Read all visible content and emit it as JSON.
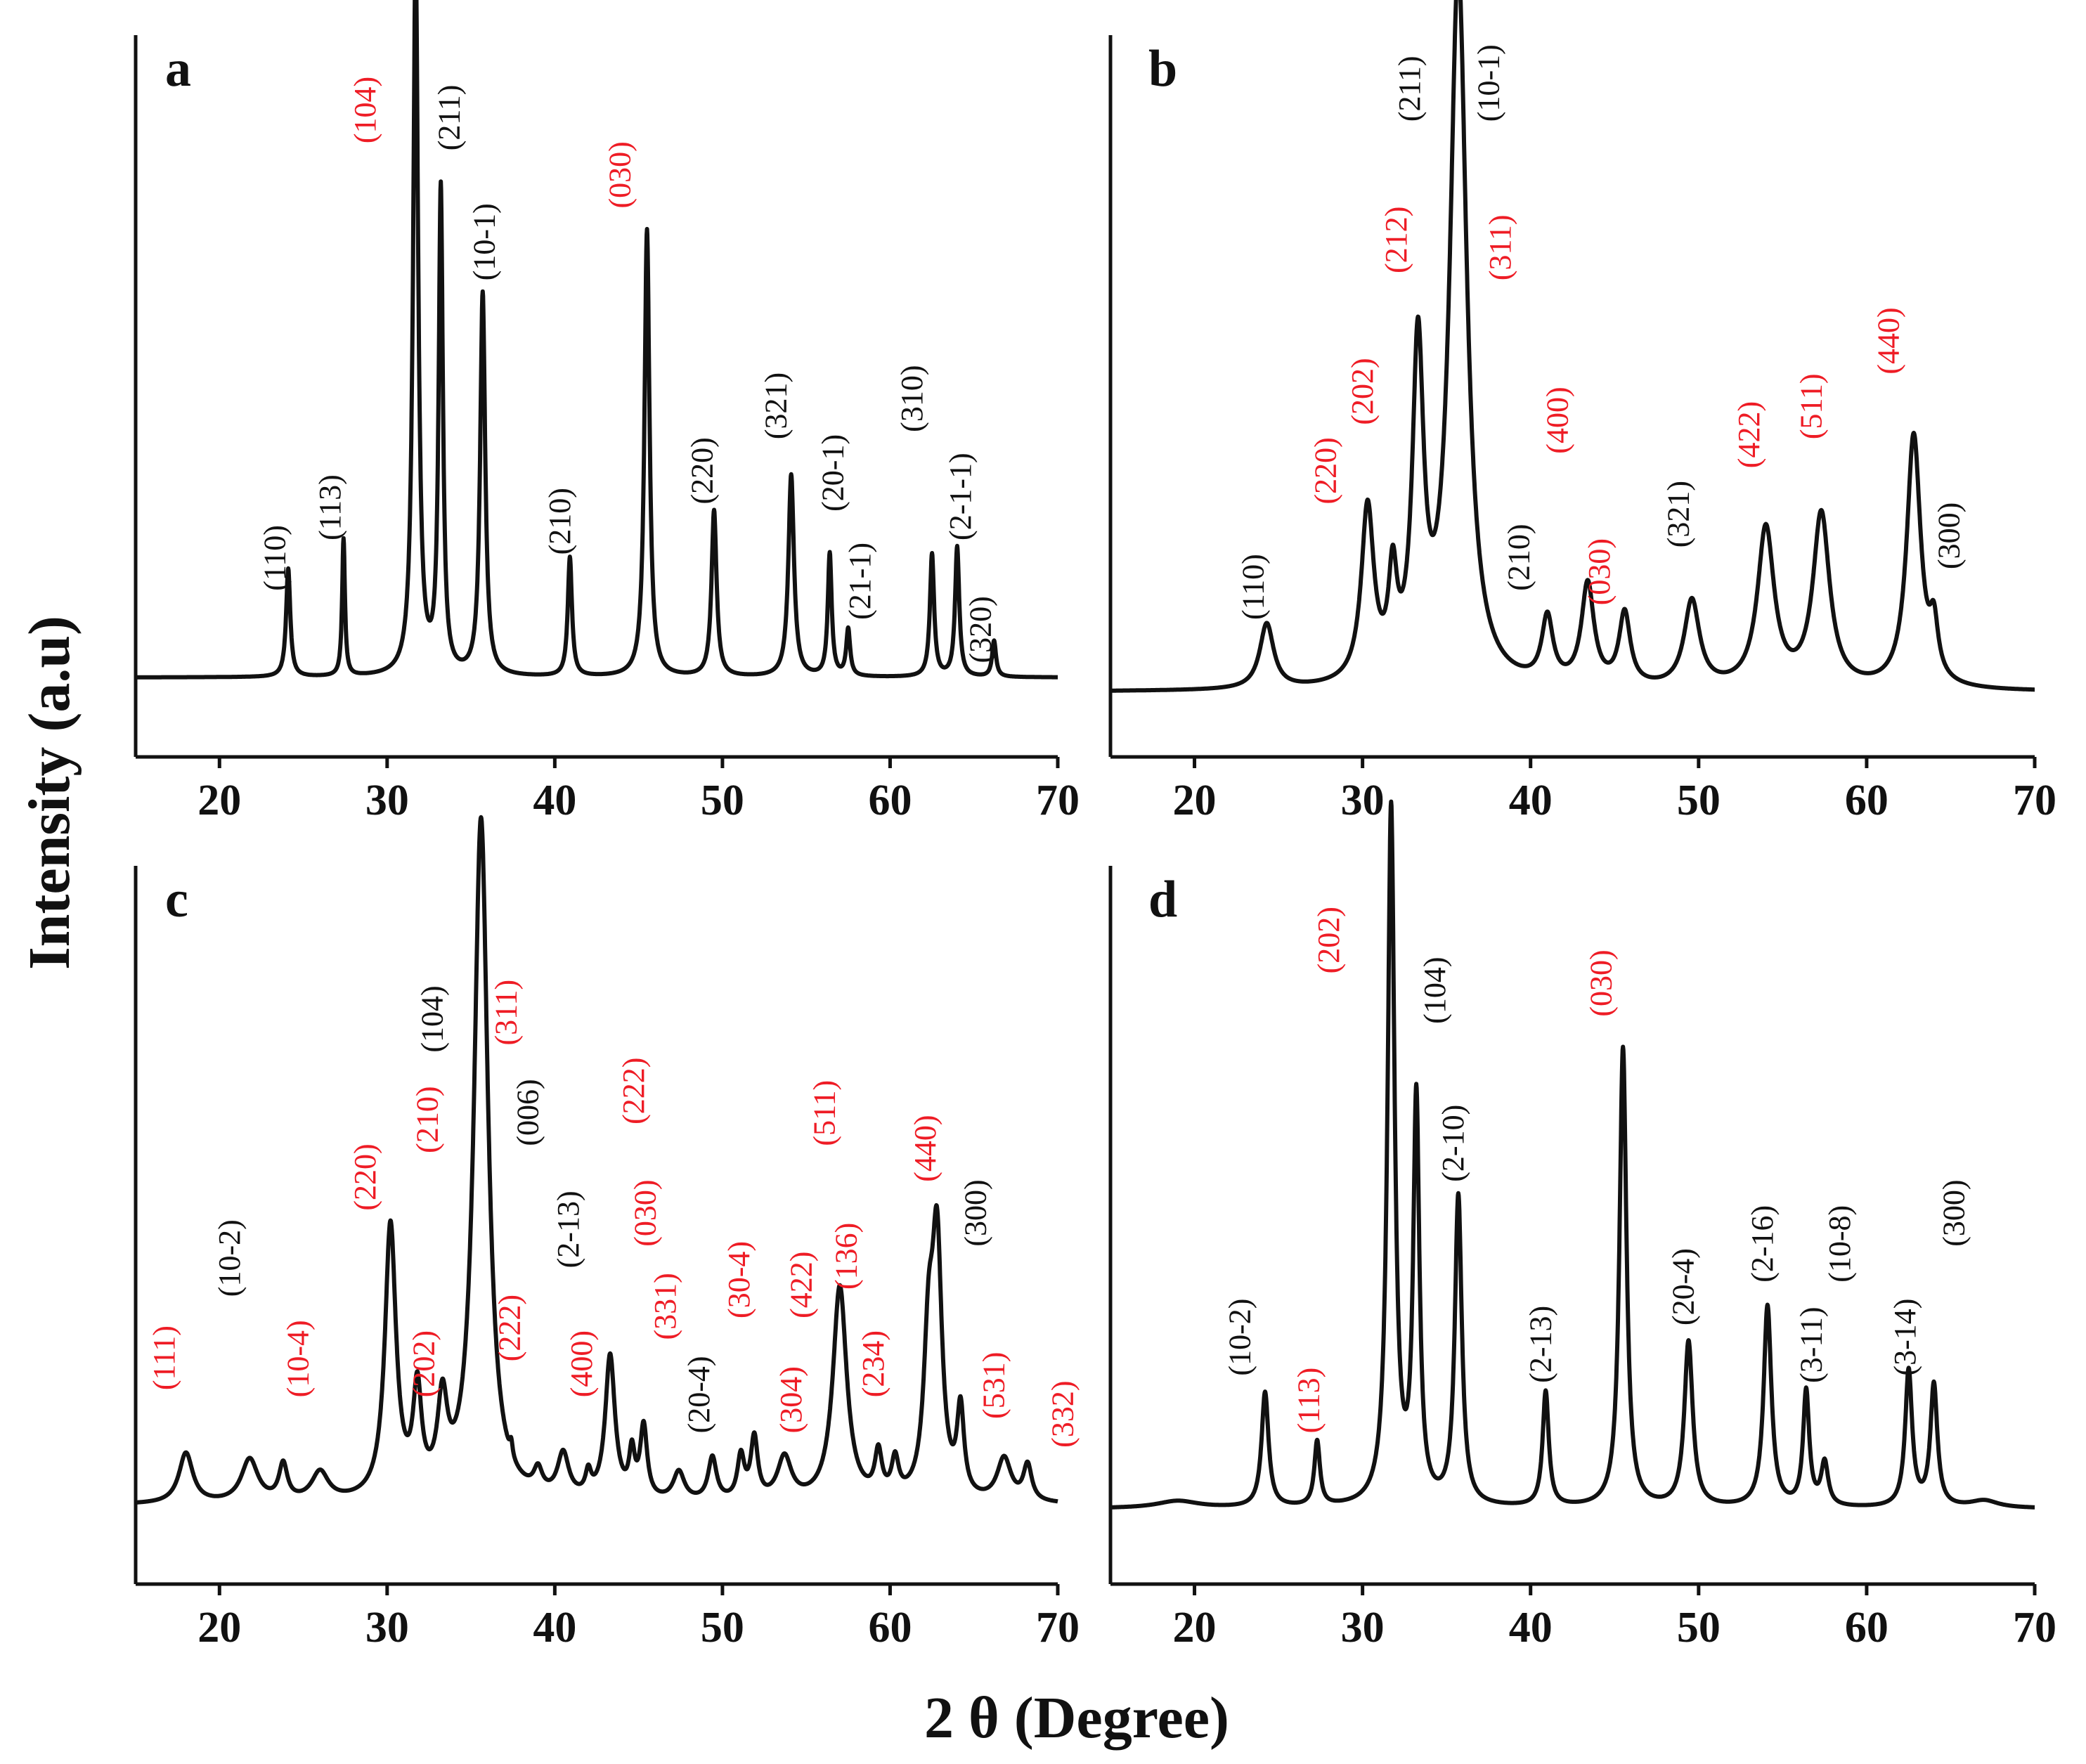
{
  "figure": {
    "ylabel": "Intensity (a.u)",
    "xlabel": "2 θ (Degree)",
    "colors": {
      "red": "#ee1c25",
      "black": "#111111"
    }
  },
  "chart_data": [
    {
      "type": "line",
      "panel": "a",
      "xlim": [
        15,
        70
      ],
      "xticks": [
        20,
        30,
        40,
        50,
        60,
        70
      ],
      "xtick_labels": [
        "20",
        "30",
        "40",
        "50",
        "60",
        "70"
      ],
      "baseline": 0.11,
      "peaks": [
        {
          "x": 24.1,
          "h": 0.15,
          "w": 0.15
        },
        {
          "x": 27.4,
          "h": 0.19,
          "w": 0.1
        },
        {
          "x": 31.7,
          "h": 1.0,
          "w": 0.18
        },
        {
          "x": 33.2,
          "h": 0.67,
          "w": 0.15
        },
        {
          "x": 35.7,
          "h": 0.53,
          "w": 0.18
        },
        {
          "x": 40.9,
          "h": 0.165,
          "w": 0.15
        },
        {
          "x": 45.5,
          "h": 0.62,
          "w": 0.18
        },
        {
          "x": 49.5,
          "h": 0.23,
          "w": 0.18
        },
        {
          "x": 54.1,
          "h": 0.28,
          "w": 0.2
        },
        {
          "x": 56.4,
          "h": 0.17,
          "w": 0.14
        },
        {
          "x": 57.5,
          "h": 0.065,
          "w": 0.14
        },
        {
          "x": 62.5,
          "h": 0.17,
          "w": 0.15
        },
        {
          "x": 64.0,
          "h": 0.18,
          "w": 0.15
        },
        {
          "x": 66.2,
          "h": 0.05,
          "w": 0.14
        }
      ],
      "annotations": [
        {
          "text": "(110)",
          "x": 23.9,
          "y": 0.23,
          "color": "black"
        },
        {
          "text": "(113)",
          "x": 27.2,
          "y": 0.3,
          "color": "black"
        },
        {
          "text": "(104)",
          "x": 29.3,
          "y": 0.85,
          "color": "red"
        },
        {
          "text": "(211)",
          "x": 34.3,
          "y": 0.84,
          "color": "black"
        },
        {
          "text": "(10-1)",
          "x": 36.4,
          "y": 0.66,
          "color": "black"
        },
        {
          "text": "(210)",
          "x": 40.9,
          "y": 0.28,
          "color": "black"
        },
        {
          "text": "(030)",
          "x": 44.5,
          "y": 0.76,
          "color": "red"
        },
        {
          "text": "(220)",
          "x": 49.4,
          "y": 0.35,
          "color": "black"
        },
        {
          "text": "(321)",
          "x": 53.8,
          "y": 0.44,
          "color": "black"
        },
        {
          "text": "(20-1)",
          "x": 57.2,
          "y": 0.34,
          "color": "black"
        },
        {
          "text": "(21-1)",
          "x": 58.8,
          "y": 0.19,
          "color": "black"
        },
        {
          "text": "(310)",
          "x": 61.9,
          "y": 0.45,
          "color": "black"
        },
        {
          "text": "(2-1-1)",
          "x": 64.8,
          "y": 0.3,
          "color": "black"
        },
        {
          "text": "(320)",
          "x": 66.0,
          "y": 0.13,
          "color": "black"
        }
      ]
    },
    {
      "type": "line",
      "panel": "b",
      "xlim": [
        15,
        70
      ],
      "xticks": [
        20,
        30,
        40,
        50,
        60,
        70
      ],
      "xtick_labels": [
        "20",
        "30",
        "40",
        "50",
        "60",
        "70"
      ],
      "baseline": 0.09,
      "peaks": [
        {
          "x": 24.3,
          "h": 0.09,
          "w": 0.5
        },
        {
          "x": 30.3,
          "h": 0.24,
          "w": 0.45
        },
        {
          "x": 31.8,
          "h": 0.13,
          "w": 0.3
        },
        {
          "x": 33.3,
          "h": 0.45,
          "w": 0.4
        },
        {
          "x": 35.7,
          "h": 0.99,
          "w": 0.6
        },
        {
          "x": 41.0,
          "h": 0.09,
          "w": 0.4
        },
        {
          "x": 43.4,
          "h": 0.14,
          "w": 0.45
        },
        {
          "x": 45.6,
          "h": 0.1,
          "w": 0.4
        },
        {
          "x": 49.6,
          "h": 0.12,
          "w": 0.55
        },
        {
          "x": 54.0,
          "h": 0.22,
          "w": 0.6
        },
        {
          "x": 57.3,
          "h": 0.24,
          "w": 0.6
        },
        {
          "x": 62.8,
          "h": 0.35,
          "w": 0.5
        },
        {
          "x": 64.0,
          "h": 0.07,
          "w": 0.3
        }
      ],
      "annotations": [
        {
          "text": "(110)",
          "x": 24.1,
          "y": 0.19,
          "color": "black"
        },
        {
          "text": "(220)",
          "x": 28.4,
          "y": 0.35,
          "color": "red"
        },
        {
          "text": "(202)",
          "x": 30.6,
          "y": 0.46,
          "color": "red"
        },
        {
          "text": "(212)",
          "x": 32.6,
          "y": 0.67,
          "color": "red"
        },
        {
          "text": "(211)",
          "x": 33.4,
          "y": 0.88,
          "color": "black"
        },
        {
          "text": "(10-1)",
          "x": 38.1,
          "y": 0.88,
          "color": "black"
        },
        {
          "text": "(311)",
          "x": 38.8,
          "y": 0.66,
          "color": "red"
        },
        {
          "text": "(210)",
          "x": 39.9,
          "y": 0.23,
          "color": "black"
        },
        {
          "text": "(400)",
          "x": 42.2,
          "y": 0.42,
          "color": "red"
        },
        {
          "text": "(030)",
          "x": 44.7,
          "y": 0.21,
          "color": "red"
        },
        {
          "text": "(321)",
          "x": 49.4,
          "y": 0.29,
          "color": "black"
        },
        {
          "text": "(422)",
          "x": 53.6,
          "y": 0.4,
          "color": "red"
        },
        {
          "text": "(511)",
          "x": 57.3,
          "y": 0.44,
          "color": "red"
        },
        {
          "text": "(440)",
          "x": 61.9,
          "y": 0.53,
          "color": "red"
        },
        {
          "text": "(300)",
          "x": 65.5,
          "y": 0.26,
          "color": "black"
        }
      ]
    },
    {
      "type": "line",
      "panel": "c",
      "xlim": [
        15,
        70
      ],
      "xticks": [
        20,
        30,
        40,
        50,
        60,
        70
      ],
      "xtick_labels": [
        "20",
        "30",
        "40",
        "50",
        "60",
        "70"
      ],
      "baseline": 0.11,
      "peaks": [
        {
          "x": 18.0,
          "h": 0.07,
          "w": 0.5
        },
        {
          "x": 21.8,
          "h": 0.06,
          "w": 0.6
        },
        {
          "x": 23.8,
          "h": 0.05,
          "w": 0.3
        },
        {
          "x": 26.0,
          "h": 0.04,
          "w": 0.6
        },
        {
          "x": 30.2,
          "h": 0.38,
          "w": 0.4
        },
        {
          "x": 31.8,
          "h": 0.14,
          "w": 0.3
        },
        {
          "x": 33.3,
          "h": 0.12,
          "w": 0.35
        },
        {
          "x": 35.6,
          "h": 0.95,
          "w": 0.5
        },
        {
          "x": 37.4,
          "h": 0.02,
          "w": 0.1
        },
        {
          "x": 39.0,
          "h": 0.03,
          "w": 0.3
        },
        {
          "x": 40.5,
          "h": 0.06,
          "w": 0.4
        },
        {
          "x": 42.0,
          "h": 0.03,
          "w": 0.2
        },
        {
          "x": 43.3,
          "h": 0.2,
          "w": 0.35
        },
        {
          "x": 44.6,
          "h": 0.06,
          "w": 0.2
        },
        {
          "x": 45.3,
          "h": 0.1,
          "w": 0.25
        },
        {
          "x": 47.4,
          "h": 0.04,
          "w": 0.4
        },
        {
          "x": 49.4,
          "h": 0.06,
          "w": 0.3
        },
        {
          "x": 51.1,
          "h": 0.06,
          "w": 0.25
        },
        {
          "x": 51.9,
          "h": 0.085,
          "w": 0.25
        },
        {
          "x": 53.7,
          "h": 0.06,
          "w": 0.5
        },
        {
          "x": 57.0,
          "h": 0.3,
          "w": 0.5
        },
        {
          "x": 59.3,
          "h": 0.06,
          "w": 0.25
        },
        {
          "x": 60.3,
          "h": 0.05,
          "w": 0.25
        },
        {
          "x": 62.3,
          "h": 0.2,
          "w": 0.35
        },
        {
          "x": 62.8,
          "h": 0.34,
          "w": 0.35
        },
        {
          "x": 64.2,
          "h": 0.12,
          "w": 0.25
        },
        {
          "x": 66.8,
          "h": 0.06,
          "w": 0.5
        },
        {
          "x": 68.2,
          "h": 0.05,
          "w": 0.3
        }
      ],
      "annotations": [
        {
          "text": "(111)",
          "x": 17.3,
          "y": 0.27,
          "color": "red"
        },
        {
          "text": "(10-2)",
          "x": 21.2,
          "y": 0.4,
          "color": "black"
        },
        {
          "text": "(10-4)",
          "x": 25.3,
          "y": 0.26,
          "color": "red"
        },
        {
          "text": "(220)",
          "x": 29.3,
          "y": 0.52,
          "color": "red"
        },
        {
          "text": "(202)",
          "x": 32.8,
          "y": 0.26,
          "color": "red"
        },
        {
          "text": "(210)",
          "x": 33.0,
          "y": 0.6,
          "color": "red"
        },
        {
          "text": "(104)",
          "x": 33.3,
          "y": 0.74,
          "color": "black"
        },
        {
          "text": "(311)",
          "x": 37.7,
          "y": 0.75,
          "color": "red"
        },
        {
          "text": "(222)",
          "x": 37.9,
          "y": 0.31,
          "color": "red"
        },
        {
          "text": "(006)",
          "x": 39.0,
          "y": 0.61,
          "color": "black"
        },
        {
          "text": "(2-13)",
          "x": 41.4,
          "y": 0.44,
          "color": "black"
        },
        {
          "text": "(400)",
          "x": 42.2,
          "y": 0.26,
          "color": "red"
        },
        {
          "text": "(222)",
          "x": 45.3,
          "y": 0.64,
          "color": "red"
        },
        {
          "text": "(030)",
          "x": 46.0,
          "y": 0.47,
          "color": "red"
        },
        {
          "text": "(331)",
          "x": 47.2,
          "y": 0.34,
          "color": "red"
        },
        {
          "text": "(20-4)",
          "x": 49.2,
          "y": 0.21,
          "color": "black"
        },
        {
          "text": "(30-4)",
          "x": 51.6,
          "y": 0.37,
          "color": "red"
        },
        {
          "text": "(304)",
          "x": 54.7,
          "y": 0.21,
          "color": "red"
        },
        {
          "text": "(422)",
          "x": 55.3,
          "y": 0.37,
          "color": "red"
        },
        {
          "text": "(511)",
          "x": 56.7,
          "y": 0.61,
          "color": "red"
        },
        {
          "text": "(136)",
          "x": 58.0,
          "y": 0.41,
          "color": "red"
        },
        {
          "text": "(234)",
          "x": 59.6,
          "y": 0.26,
          "color": "red"
        },
        {
          "text": "(440)",
          "x": 62.7,
          "y": 0.56,
          "color": "red"
        },
        {
          "text": "(300)",
          "x": 65.7,
          "y": 0.47,
          "color": "black"
        },
        {
          "text": "(531)",
          "x": 66.8,
          "y": 0.23,
          "color": "red"
        },
        {
          "text": "(332)",
          "x": 70.9,
          "y": 0.19,
          "color": "red"
        }
      ]
    },
    {
      "type": "line",
      "panel": "d",
      "xlim": [
        15,
        70
      ],
      "xticks": [
        20,
        30,
        40,
        50,
        60,
        70
      ],
      "xtick_labels": [
        "20",
        "30",
        "40",
        "50",
        "60",
        "70"
      ],
      "baseline": 0.105,
      "peaks": [
        {
          "x": 19.0,
          "h": 0.01,
          "w": 1.5
        },
        {
          "x": 24.2,
          "h": 0.16,
          "w": 0.25
        },
        {
          "x": 27.3,
          "h": 0.09,
          "w": 0.2
        },
        {
          "x": 31.7,
          "h": 0.97,
          "w": 0.25
        },
        {
          "x": 33.2,
          "h": 0.56,
          "w": 0.22
        },
        {
          "x": 35.7,
          "h": 0.43,
          "w": 0.25
        },
        {
          "x": 40.9,
          "h": 0.16,
          "w": 0.22
        },
        {
          "x": 45.5,
          "h": 0.64,
          "w": 0.25
        },
        {
          "x": 49.4,
          "h": 0.23,
          "w": 0.3
        },
        {
          "x": 54.1,
          "h": 0.28,
          "w": 0.28
        },
        {
          "x": 56.4,
          "h": 0.16,
          "w": 0.22
        },
        {
          "x": 57.5,
          "h": 0.06,
          "w": 0.25
        },
        {
          "x": 62.5,
          "h": 0.19,
          "w": 0.25
        },
        {
          "x": 64.0,
          "h": 0.17,
          "w": 0.25
        },
        {
          "x": 67.0,
          "h": 0.01,
          "w": 1.0
        }
      ],
      "annotations": [
        {
          "text": "(10-2)",
          "x": 23.3,
          "y": 0.29,
          "color": "black"
        },
        {
          "text": "(113)",
          "x": 27.4,
          "y": 0.21,
          "color": "red"
        },
        {
          "text": "(202)",
          "x": 28.6,
          "y": 0.85,
          "color": "red"
        },
        {
          "text": "(104)",
          "x": 34.9,
          "y": 0.78,
          "color": "black"
        },
        {
          "text": "(2-10)",
          "x": 36.0,
          "y": 0.56,
          "color": "black"
        },
        {
          "text": "(2-13)",
          "x": 41.2,
          "y": 0.28,
          "color": "black"
        },
        {
          "text": "(030)",
          "x": 44.8,
          "y": 0.79,
          "color": "red"
        },
        {
          "text": "(20-4)",
          "x": 49.7,
          "y": 0.36,
          "color": "black"
        },
        {
          "text": "(2-16)",
          "x": 54.4,
          "y": 0.42,
          "color": "black"
        },
        {
          "text": "(3-11)",
          "x": 57.3,
          "y": 0.28,
          "color": "black"
        },
        {
          "text": "(10-8)",
          "x": 59.0,
          "y": 0.42,
          "color": "black"
        },
        {
          "text": "(3-14)",
          "x": 62.9,
          "y": 0.29,
          "color": "black"
        },
        {
          "text": "(300)",
          "x": 65.8,
          "y": 0.47,
          "color": "black"
        }
      ]
    }
  ]
}
